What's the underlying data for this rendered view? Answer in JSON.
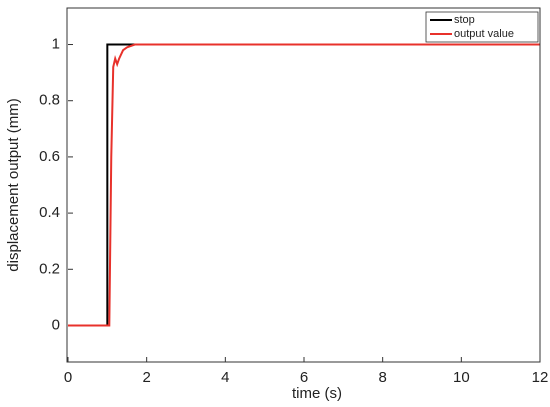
{
  "chart_data": {
    "type": "line",
    "xlabel": "time (s)",
    "ylabel": "displacement output (mm)",
    "xlim": [
      0,
      12
    ],
    "ylim": [
      -0.13,
      1.13
    ],
    "xticks": [
      0,
      2,
      4,
      6,
      8,
      10,
      12
    ],
    "yticks": [
      0,
      0.2,
      0.4,
      0.6,
      0.8,
      1
    ],
    "legend": "upper right",
    "series": [
      {
        "name": "stop",
        "color": "#000000",
        "x": [
          0,
          1,
          1,
          12
        ],
        "values": [
          0,
          0,
          1,
          1
        ]
      },
      {
        "name": "output value",
        "color": "#e8312b",
        "x": [
          0,
          1.05,
          1.1,
          1.15,
          1.2,
          1.25,
          1.3,
          1.4,
          1.5,
          1.7,
          2,
          12
        ],
        "values": [
          0,
          0,
          0.6,
          0.92,
          0.95,
          0.93,
          0.95,
          0.98,
          0.99,
          1,
          1,
          1
        ]
      }
    ]
  }
}
